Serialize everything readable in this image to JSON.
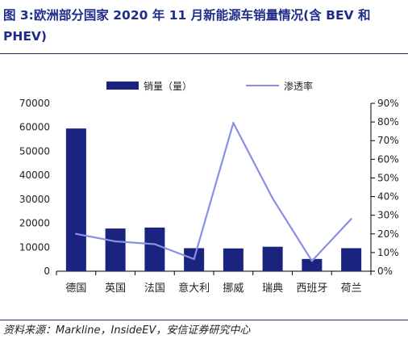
{
  "title": "图 3:欧洲部分国家 2020 年 11 月新能源车销量情况(含 BEV 和 PHEV)",
  "source": "资料来源：Markline，InsideEV，安信证券研究中心",
  "colors": {
    "bar": "#1a237e",
    "line": "#8a8fe6",
    "title": "#1f2d8a"
  },
  "chart_data": {
    "type": "bar",
    "categories": [
      "德国",
      "英国",
      "法国",
      "意大利",
      "挪威",
      "瑞典",
      "西班牙",
      "荷兰"
    ],
    "series": [
      {
        "name": "销量（量）",
        "type": "bar",
        "axis": "left",
        "values": [
          59500,
          17800,
          18200,
          9600,
          9500,
          10200,
          5100,
          9600
        ]
      },
      {
        "name": "渗透率",
        "type": "line",
        "axis": "right",
        "values": [
          20,
          16,
          14.5,
          6.5,
          79.5,
          39,
          5.5,
          28
        ]
      }
    ],
    "ylim_left": [
      0,
      70000
    ],
    "ylim_right": [
      0,
      90
    ],
    "left_ticks": [
      "0",
      "10000",
      "20000",
      "30000",
      "40000",
      "50000",
      "60000",
      "70000"
    ],
    "right_ticks": [
      "0%",
      "10%",
      "20%",
      "30%",
      "40%",
      "50%",
      "60%",
      "70%",
      "80%",
      "90%"
    ],
    "legend_position": "top",
    "grid": false
  }
}
